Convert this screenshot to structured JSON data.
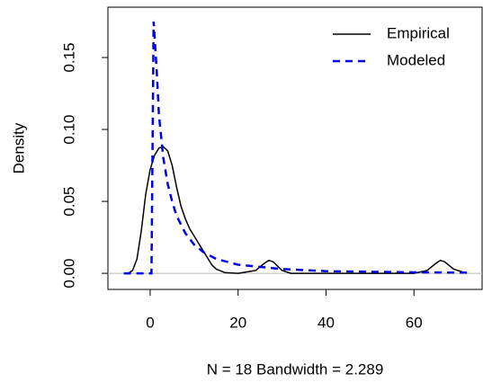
{
  "chart_data": {
    "type": "line",
    "x_label": "N = 18   Bandwidth = 2.289",
    "y_label": "Density",
    "xlim": [
      -9.6,
      75.5
    ],
    "ylim": [
      -0.0112,
      0.185
    ],
    "xticks": [
      0,
      20,
      40,
      60
    ],
    "yticks": [
      {
        "value": 0,
        "label": "0.00"
      },
      {
        "value": 0.05,
        "label": "0.05"
      },
      {
        "value": 0.1,
        "label": "0.10"
      },
      {
        "value": 0.15,
        "label": "0.15"
      }
    ],
    "zero_line": true,
    "zero_line_color": "#bbbbbb",
    "legend": "top-right",
    "series": [
      {
        "name": "Empirical",
        "color": "#000000",
        "dash": "solid",
        "x": [
          -5,
          -4,
          -3,
          -2,
          -1,
          0,
          1,
          2,
          3,
          4,
          5,
          6,
          7,
          8,
          9,
          10,
          11,
          12,
          13,
          14,
          15,
          17,
          20,
          24,
          26,
          27,
          28,
          30,
          32,
          40,
          60,
          63,
          65,
          66,
          67,
          69,
          72
        ],
        "values": [
          0,
          0.002,
          0.01,
          0.03,
          0.055,
          0.072,
          0.082,
          0.087,
          0.088,
          0.085,
          0.075,
          0.06,
          0.047,
          0.038,
          0.031,
          0.026,
          0.021,
          0.016,
          0.011,
          0.006,
          0.003,
          0.0005,
          0,
          0.002,
          0.007,
          0.009,
          0.008,
          0.002,
          0,
          0,
          0,
          0.002,
          0.007,
          0.009,
          0.008,
          0.003,
          0
        ]
      },
      {
        "name": "Modeled",
        "color": "#0000ee",
        "dash": "dashed",
        "x": [
          -6,
          0.3,
          0.8,
          1.5,
          2,
          3,
          4,
          5,
          6,
          8,
          10,
          12,
          15,
          20,
          30,
          40,
          60,
          72
        ],
        "values": [
          0,
          0,
          0.175,
          0.14,
          0.11,
          0.08,
          0.062,
          0.05,
          0.04,
          0.028,
          0.02,
          0.015,
          0.01,
          0.006,
          0.003,
          0.0015,
          0.0007,
          0.0005
        ]
      }
    ]
  }
}
